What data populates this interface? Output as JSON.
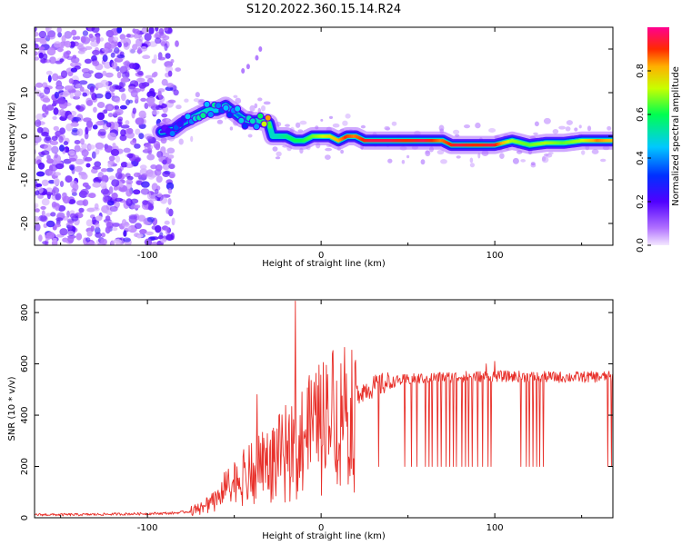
{
  "figure": {
    "title": "S120.2022.360.15.14.R24"
  },
  "chart_data": [
    {
      "type": "heatmap",
      "title": "S120.2022.360.15.14.R24",
      "xlabel": "Height of straight line (km)",
      "ylabel": "Frequency (Hz)",
      "xlim": [
        -165,
        168
      ],
      "ylim": [
        -25,
        25
      ],
      "xticks": [
        -100,
        0,
        100
      ],
      "xtick_labels": [
        "-100",
        "0",
        "100"
      ],
      "yticks": [
        20,
        10,
        0,
        -10,
        -20
      ],
      "ytick_labels": [
        "20",
        "10",
        "0",
        "-10",
        "-20"
      ],
      "colorbar": {
        "label": "Normalized spectral amplitude",
        "range": [
          0,
          1
        ],
        "ticks": [
          0.0,
          0.2,
          0.4,
          0.6,
          0.8
        ],
        "tick_labels": [
          "0.0",
          "0.2",
          "0.4",
          "0.6",
          "0.8"
        ],
        "colors": [
          "#ffffff",
          "#6a00ff",
          "#0000ff",
          "#00c0ff",
          "#00ff40",
          "#ffff00",
          "#ff3300",
          "#ff0080"
        ]
      },
      "noise_region": {
        "x_range": [
          -165,
          -85
        ],
        "y_range": [
          -25,
          25
        ],
        "level": "low (0.05-0.3)"
      },
      "ridge": {
        "x": [
          -92,
          -85,
          -80,
          -75,
          -70,
          -65,
          -60,
          -55,
          -50,
          -45,
          -40,
          -35,
          -30,
          -28,
          -25,
          -20,
          -15,
          -10,
          -5,
          0,
          5,
          10,
          15,
          20,
          25,
          30,
          40,
          50,
          60,
          70,
          75,
          80,
          90,
          100,
          110,
          120,
          130,
          140,
          150,
          160,
          168
        ],
        "freq": [
          1,
          1.5,
          3,
          4,
          5,
          6,
          6,
          7,
          5.5,
          4,
          3.5,
          3.5,
          3,
          0,
          0,
          0,
          -1,
          -1,
          0,
          0,
          0,
          -1,
          0,
          0,
          -1,
          -1,
          -1,
          -1,
          -1,
          -1,
          -2,
          -2,
          -2,
          -2,
          -1,
          -2,
          -1.5,
          -1.5,
          -1,
          -1,
          -1
        ],
        "amplitude": [
          0.2,
          0.3,
          0.35,
          0.4,
          0.45,
          0.5,
          0.45,
          0.45,
          0.4,
          0.35,
          0.4,
          0.5,
          0.75,
          0.5,
          0.5,
          0.55,
          0.6,
          0.6,
          0.65,
          0.7,
          0.75,
          0.8,
          0.9,
          0.85,
          0.9,
          0.95,
          0.95,
          0.9,
          0.95,
          0.85,
          0.9,
          0.95,
          0.9,
          0.95,
          0.7,
          0.65,
          0.7,
          0.65,
          0.7,
          0.85,
          0.8
        ]
      }
    },
    {
      "type": "line",
      "xlabel": "Height of straight line (km)",
      "ylabel": "SNR (10 * v/v)",
      "xlim": [
        -165,
        168
      ],
      "ylim": [
        0,
        850
      ],
      "xticks": [
        -100,
        0,
        100
      ],
      "xtick_labels": [
        "-100",
        "0",
        "100"
      ],
      "yticks": [
        0,
        200,
        400,
        600,
        800
      ],
      "ytick_labels": [
        "0",
        "200",
        "400",
        "600",
        "800"
      ],
      "color": "#e8302a",
      "envelope": {
        "x": [
          -165,
          -140,
          -120,
          -100,
          -85,
          -75,
          -65,
          -55,
          -45,
          -35,
          -25,
          -15,
          -5,
          5,
          15,
          25,
          35,
          45,
          60,
          80,
          100,
          120,
          140,
          168
        ],
        "y": [
          12,
          12,
          14,
          16,
          18,
          25,
          60,
          120,
          170,
          210,
          260,
          310,
          370,
          430,
          470,
          500,
          520,
          535,
          545,
          550,
          552,
          550,
          548,
          550
        ]
      },
      "spikes": [
        {
          "x": -37,
          "y": 480
        },
        {
          "x": -15,
          "y": 845
        },
        {
          "x": 95,
          "y": 600
        },
        {
          "x": 100,
          "y": 610
        }
      ],
      "dropouts": {
        "x": [
          33,
          48,
          52,
          55,
          60,
          62,
          64,
          67,
          69,
          72,
          74,
          76,
          78,
          81,
          83,
          85,
          87,
          90,
          93,
          96,
          98,
          115,
          118,
          120,
          122,
          124,
          126,
          128,
          165,
          167
        ],
        "y": 200
      }
    }
  ]
}
